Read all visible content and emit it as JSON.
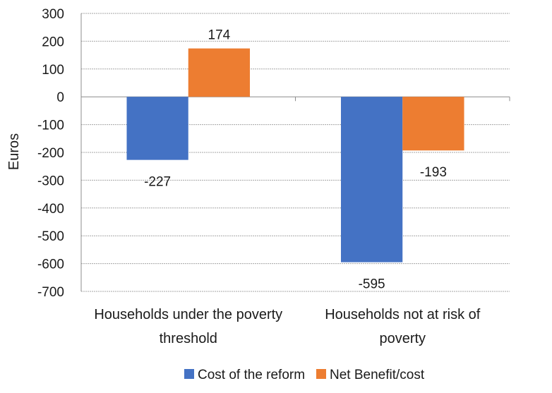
{
  "chart_data": {
    "type": "bar",
    "title": "",
    "xlabel": "",
    "ylabel": "Euros",
    "ylim": [
      -700,
      300
    ],
    "ytick_step": 100,
    "grid": true,
    "legend_position": "bottom",
    "categories": [
      [
        "Households under the poverty",
        "threshold"
      ],
      [
        "Households not at risk of",
        "poverty"
      ]
    ],
    "series": [
      {
        "name": "Cost of the reform",
        "color": "#4472C4",
        "values": [
          -227,
          -595
        ]
      },
      {
        "name": "Net Benefit/cost",
        "color": "#ED7D31",
        "values": [
          174,
          -193
        ]
      }
    ],
    "data_labels": [
      [
        "-227",
        "-595"
      ],
      [
        "174",
        "-193"
      ]
    ]
  }
}
